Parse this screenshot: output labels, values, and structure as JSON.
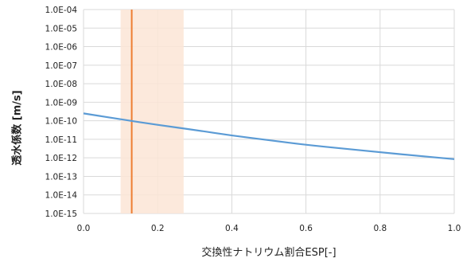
{
  "chart_data": {
    "type": "line",
    "xlabel": "交換性ナトリウム割合ESP[-]",
    "ylabel": "透水係数 [m/s]",
    "xlim": [
      0,
      1.0
    ],
    "ylim_log10": [
      -15,
      -4
    ],
    "y_scale": "log",
    "grid": true,
    "x_ticks": [
      "0.0",
      "0.2",
      "0.4",
      "0.6",
      "0.8",
      "1.0"
    ],
    "y_ticks": [
      "1.0E-15",
      "1.0E-14",
      "1.0E-13",
      "1.0E-12",
      "1.0E-11",
      "1.0E-10",
      "1.0E-09",
      "1.0E-08",
      "1.0E-07",
      "1.0E-06",
      "1.0E-05",
      "1.0E-04"
    ],
    "series": [
      {
        "color": "#5b9bd5",
        "x": [
          0.0,
          0.1,
          0.2,
          0.3,
          0.4,
          0.5,
          0.6,
          0.7,
          0.8,
          0.9,
          1.0
        ],
        "y": [
          2.5e-10,
          1.2e-10,
          6e-11,
          3.2e-11,
          1.6e-11,
          9e-12,
          5e-12,
          3.2e-12,
          2e-12,
          1.3e-12,
          8.5e-13
        ]
      }
    ],
    "shaded_band": {
      "x_from": 0.1,
      "x_to": 0.27,
      "color": "#fbe5d6"
    },
    "vertical_line": {
      "x": 0.13,
      "color": "#ed7d31"
    }
  }
}
